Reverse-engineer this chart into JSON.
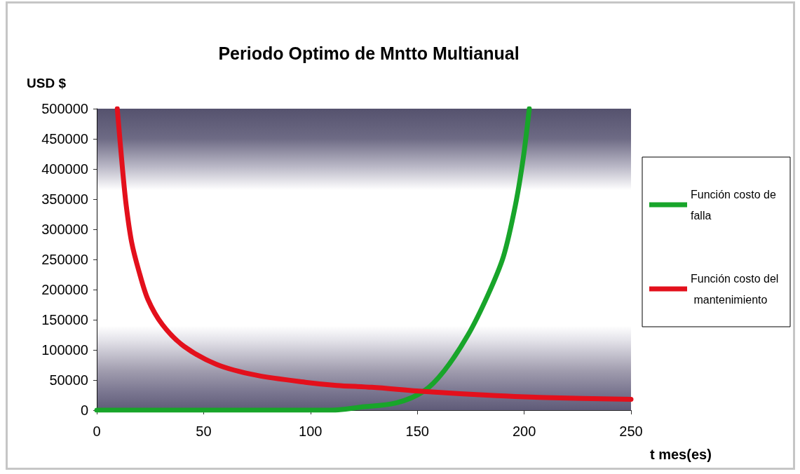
{
  "chart_data": {
    "type": "line",
    "title": "Periodo Optimo de Mntto Multianual",
    "xlabel": "t mes(es)",
    "ylabel": "USD $",
    "xlim": [
      0,
      250
    ],
    "xticks": [
      0,
      50,
      100,
      150,
      200,
      250
    ],
    "ylim": [
      0,
      500000
    ],
    "yticks": [
      0,
      50000,
      100000,
      150000,
      200000,
      250000,
      300000,
      350000,
      400000,
      450000,
      500000
    ],
    "legend": "right",
    "marker": "none",
    "series": [
      {
        "name": "Función costo de falla",
        "color": "#18a52a",
        "x": [
          0,
          110,
          123.4,
          140.1,
          153.2,
          162.5,
          173.6,
          182.9,
          190.3,
          195.9,
          199.6,
          202.4
        ],
        "values": [
          0,
          0,
          5000,
          12000,
          32000,
          65000,
          124000,
          190000,
          255000,
          340000,
          419000,
          500000
        ]
      },
      {
        "name": "Función costo del mantenimiento",
        "color": "#e3101c",
        "x": [
          9.6,
          12.1,
          13.8,
          16.3,
          19.7,
          23.9,
          30.7,
          40.8,
          56.1,
          74.7,
          98.3,
          112.3,
          128.7,
          153,
          187,
          210,
          250
        ],
        "values": [
          500000,
          398000,
          339000,
          279000,
          231000,
          184000,
          142000,
          106000,
          76000,
          58000,
          46000,
          41000,
          38000,
          31000,
          24000,
          21000,
          18000
        ]
      }
    ]
  }
}
